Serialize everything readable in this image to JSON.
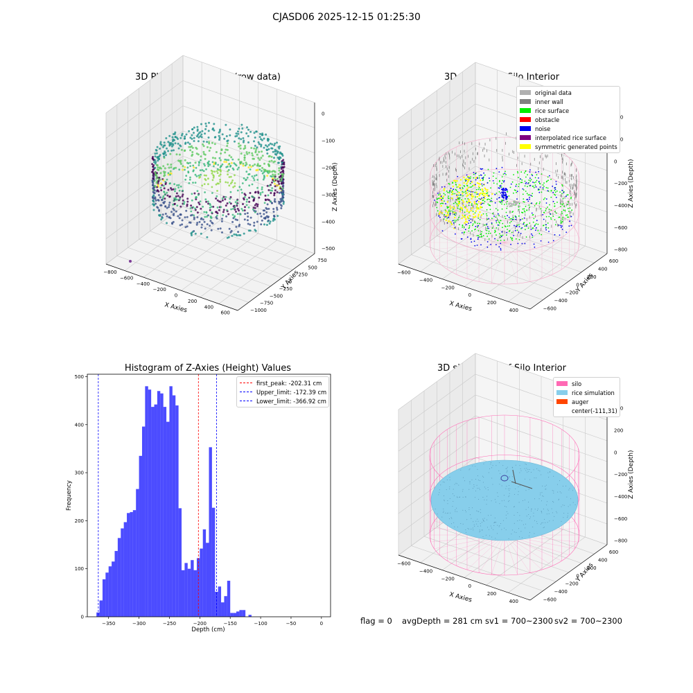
{
  "suptitle": "CJASD06 2025-12-15 01:25:30",
  "footer": {
    "flag": "flag = 0",
    "avg_depth": "avgDepth = 281 cm",
    "sv1": "sv1 = 700~2300",
    "sv2": "sv2 = 700~2300"
  },
  "chart_data": [
    {
      "type": "scatter",
      "title": "3D Plot of Silo Interior(row data)",
      "xlabel": "X Axies",
      "ylabel": "Y Axies",
      "zlabel": "Z Axies (Depth)",
      "x_ticks": [
        "−800",
        "−600",
        "−400",
        "−200",
        "0",
        "200",
        "400",
        "600"
      ],
      "y_ticks": [
        "−1000",
        "−750",
        "−500",
        "−250",
        "0",
        "250",
        "500",
        "750"
      ],
      "z_ticks": [
        "0",
        "−100",
        "−200",
        "−300",
        "−400",
        "−500"
      ],
      "xlim": [
        -800,
        600
      ],
      "ylim": [
        -1000,
        750
      ],
      "zlim": [
        -550,
        0
      ],
      "colormap": "viridis"
    },
    {
      "type": "scatter",
      "title": "3D classify of Silo Interior",
      "xlabel": "X Axies",
      "ylabel": "Y Axies",
      "zlabel": "Z Axies (Depth)",
      "x_ticks": [
        "−600",
        "−400",
        "−200",
        "0",
        "200",
        "400"
      ],
      "y_ticks": [
        "−600",
        "−400",
        "−200",
        "0",
        "200",
        "400",
        "600"
      ],
      "z_ticks": [
        "400",
        "200",
        "0",
        "−200",
        "−400",
        "−600",
        "−800"
      ],
      "legend": [
        {
          "label": "original data",
          "color": "#b0b0b0"
        },
        {
          "label": "inner wall",
          "color": "#808080"
        },
        {
          "label": "rice surface",
          "color": "#00ee00"
        },
        {
          "label": "obstacle",
          "color": "#ff0000"
        },
        {
          "label": "noise",
          "color": "#0000ee"
        },
        {
          "label": "interpolated rice surface",
          "color": "#800080"
        },
        {
          "label": "symmetric generated points",
          "color": "#ffff00"
        }
      ],
      "legend_position": "top-right"
    },
    {
      "type": "bar",
      "title": "Histogram of Z-Axies (Height) Values",
      "xlabel": "Depth (cm)",
      "ylabel": "Frequency",
      "xlim": [
        -385,
        15
      ],
      "ylim": [
        0,
        505
      ],
      "x_ticks": [
        -350,
        -300,
        -250,
        -200,
        -150,
        -100,
        -50,
        0
      ],
      "y_ticks": [
        0,
        100,
        200,
        300,
        400,
        500
      ],
      "bin_width": 5,
      "bin_start": -370,
      "values": [
        9,
        34,
        78,
        92,
        105,
        115,
        137,
        164,
        184,
        197,
        216,
        218,
        222,
        266,
        335,
        396,
        480,
        473,
        437,
        442,
        470,
        465,
        437,
        406,
        480,
        461,
        440,
        226,
        97,
        112,
        100,
        118,
        97,
        122,
        142,
        182,
        154,
        353,
        227,
        52,
        63,
        30,
        43,
        75,
        8,
        8,
        11,
        14,
        14,
        0,
        4
      ],
      "bar_color": "#0000ff",
      "vlines": [
        {
          "label": "first_peak: -202.31 cm",
          "x": -202.31,
          "color": "#ff0000"
        },
        {
          "label": "Upper_limit: -172.39 cm",
          "x": -172.39,
          "color": "#0000ff"
        },
        {
          "label": "Lower_limit: -366.92 cm",
          "x": -366.92,
          "color": "#0000ff"
        }
      ],
      "legend_position": "top-right"
    },
    {
      "type": "scatter",
      "title": "3D simulation of Silo Interior",
      "xlabel": "X Axies",
      "ylabel": "Y Axies",
      "zlabel": "Z Axies (Depth)",
      "x_ticks": [
        "−600",
        "−400",
        "−200",
        "0",
        "200",
        "400"
      ],
      "y_ticks": [
        "−600",
        "−400",
        "−200",
        "0",
        "200",
        "400",
        "600"
      ],
      "z_ticks": [
        "400",
        "200",
        "0",
        "−200",
        "−400",
        "−600",
        "−800"
      ],
      "legend": [
        {
          "label": "silo",
          "color": "#ff69b4"
        },
        {
          "label": "rice simulation",
          "color": "#87ceeb"
        },
        {
          "label": "auger",
          "color": "#ff4500"
        },
        {
          "label": "center(-111,31)",
          "color": ""
        }
      ],
      "legend_position": "top-right"
    }
  ]
}
